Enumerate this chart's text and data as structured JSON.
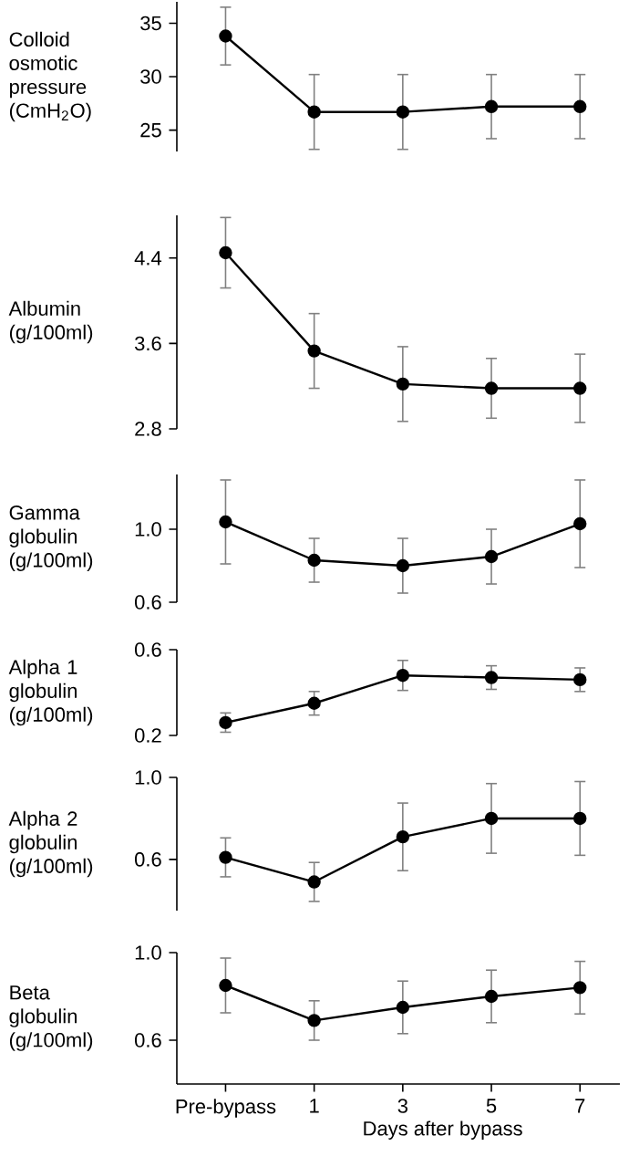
{
  "chart_data": [
    {
      "type": "line",
      "ylabel": "Colloid osmotic pressure (CmH$_{2}$O)",
      "categories": [
        null,
        null,
        null,
        null,
        null
      ],
      "values": [
        33.8,
        26.7,
        26.7,
        27.2,
        27.2
      ],
      "errors": [
        2.7,
        3.5,
        3.5,
        3,
        3
      ],
      "color": "#000000",
      "ylim": [
        23,
        37
      ],
      "yticks": [
        25,
        30,
        35
      ],
      "marker": "circle",
      "line_style": "solid",
      "tick_labels": "y"
    },
    {
      "type": "line",
      "ylabel": "Albumin (g/100ml)",
      "categories": [
        null,
        null,
        null,
        null,
        null
      ],
      "values": [
        4.45,
        3.53,
        3.22,
        3.18,
        3.18
      ],
      "errors": [
        0.33,
        0.35,
        0.35,
        0.28,
        0.32
      ],
      "color": "#000000",
      "ylim": [
        2.8,
        4.8
      ],
      "yticks": [
        {
          "value": 2.8,
          "label": "2.8"
        },
        {
          "value": 3.6,
          "label": "3.6"
        },
        {
          "value": 4.4,
          "label": "4.4"
        }
      ],
      "marker": "circle",
      "line_style": "solid",
      "tick_labels": "y"
    },
    {
      "type": "line",
      "ylabel": "Gamma globulin (g/100ml)",
      "categories": [
        null,
        null,
        null,
        null,
        null
      ],
      "values": [
        1.04,
        0.83,
        0.8,
        0.85,
        1.03
      ],
      "errors": [
        0.23,
        0.12,
        0.15,
        0.15,
        0.24
      ],
      "color": "#000000",
      "ylim": [
        0.6,
        1.3
      ],
      "yticks": [
        {
          "value": 0.6,
          "label": "0.6"
        },
        {
          "value": 1.0,
          "label": "1.0"
        }
      ],
      "marker": "circle",
      "line_style": "solid",
      "tick_labels": "y"
    },
    {
      "type": "line",
      "ylabel": "Alpha 1 globulin (g/100ml)",
      "categories": [
        null,
        null,
        null,
        null,
        null
      ],
      "values": [
        0.26,
        0.35,
        0.48,
        0.47,
        0.46
      ],
      "errors": [
        0.045,
        0.055,
        0.07,
        0.055,
        0.055
      ],
      "color": "#000000",
      "ylim": [
        0.2,
        0.6
      ],
      "yticks": [
        {
          "value": 0.2,
          "label": "0.2"
        },
        {
          "value": 0.6,
          "label": "0.6"
        }
      ],
      "marker": "circle",
      "line_style": "solid",
      "tick_labels": "y"
    },
    {
      "type": "line",
      "ylabel": "Alpha 2 globulin (g/100ml)",
      "categories": [
        null,
        null,
        null,
        null,
        null
      ],
      "values": [
        0.61,
        0.49,
        0.71,
        0.8,
        0.8
      ],
      "errors": [
        0.095,
        0.095,
        0.165,
        0.17,
        0.18
      ],
      "color": "#000000",
      "ylim": [
        0.35,
        1.0
      ],
      "yticks": [
        {
          "value": 0.6,
          "label": "0.6"
        },
        {
          "value": 1.0,
          "label": "1.0"
        }
      ],
      "marker": "circle",
      "line_style": "solid",
      "tick_labels": "y"
    },
    {
      "type": "line",
      "ylabel": "Beta globulin (g/100ml)",
      "xlabel": "Days after bypass",
      "categories": [
        "Pre-bypass",
        "1",
        "3",
        "5",
        "7"
      ],
      "values": [
        0.85,
        0.69,
        0.75,
        0.8,
        0.84
      ],
      "errors": [
        0.125,
        0.09,
        0.12,
        0.12,
        0.12
      ],
      "color": "#000000",
      "ylim": [
        0.4,
        1.0
      ],
      "yticks": [
        {
          "value": 0.6,
          "label": "0.6"
        },
        {
          "value": 1.0,
          "label": "1.0"
        }
      ],
      "marker": "circle",
      "line_style": "solid"
    }
  ]
}
